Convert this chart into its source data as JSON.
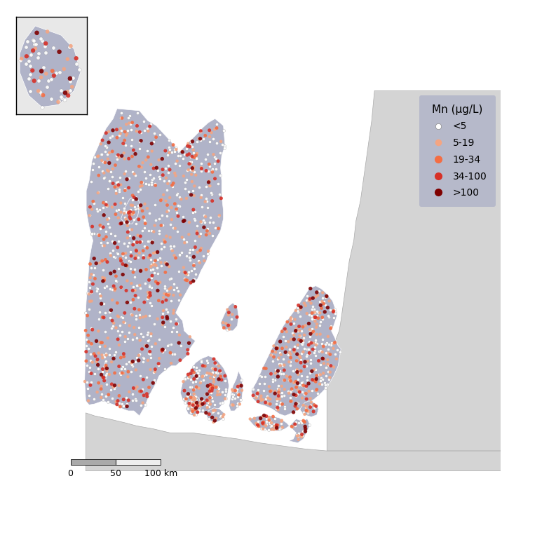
{
  "legend_title": "Mn (μg/L)",
  "categories": [
    "<5",
    "5-19",
    "19-34",
    "34-100",
    ">100"
  ],
  "colors": [
    "#ffffff",
    "#f4a582",
    "#f46d43",
    "#d73027",
    "#7f0000"
  ],
  "land_color": "#b0b3c8",
  "sea_color": "#e8e8e8",
  "neighbor_color": "#d4d4d4",
  "background_color": "#ffffff",
  "legend_bg": "#b0b3c8",
  "figsize": [
    7.93,
    7.93
  ],
  "dpi": 100,
  "seed": 42,
  "dot_alpha": 0.9,
  "cat_probs": [
    0.5,
    0.22,
    0.1,
    0.11,
    0.07
  ],
  "region_points": {
    "jutland": 1000,
    "funen": 150,
    "zealand": 400,
    "lolland_falster": 80,
    "bornholm": 70,
    "langeland": 25,
    "aeroe": 15,
    "als": 20,
    "mors": 18,
    "samso": 15,
    "mon": 18,
    "fanoe": 8
  }
}
